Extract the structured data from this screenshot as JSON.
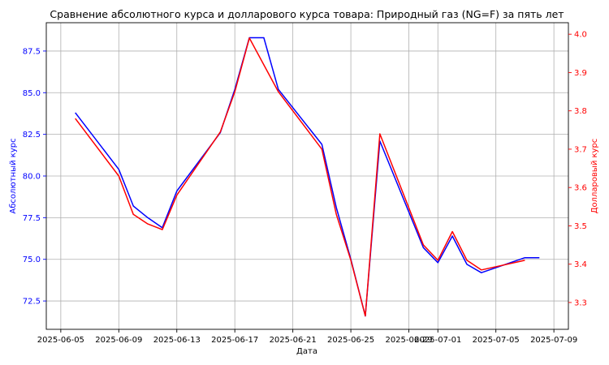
{
  "chart_data": {
    "type": "line",
    "title": "Сравнение абсолютного курса и долларового курса товара: Природный газ (NG=F) за пять лет",
    "xlabel": "Дата",
    "ylabel_left": "Абсолютный курс",
    "ylabel_right": "Долларовый курс",
    "grid": true,
    "colors": {
      "left": "#0000ff",
      "right": "#ff0000"
    },
    "x_ticks": [
      "2025-06-05",
      "2025-06-09",
      "2025-06-13",
      "2025-06-17",
      "2025-06-21",
      "2025-06-25",
      "2025-06-29",
      "2025-07-01",
      "2025-07-05",
      "2025-07-09"
    ],
    "xlim": [
      "2025-06-04",
      "2025-07-10"
    ],
    "ylim_left": [
      70.8,
      89.2
    ],
    "ylim_right": [
      3.23,
      4.03
    ],
    "y_ticks_left": [
      "72.5",
      "75.0",
      "77.5",
      "80.0",
      "82.5",
      "85.0",
      "87.5"
    ],
    "y_ticks_right": [
      "3.3",
      "3.4",
      "3.5",
      "3.6",
      "3.7",
      "3.8",
      "3.9",
      "4.0"
    ],
    "series": [
      {
        "axis": "left",
        "color": "#0000ff",
        "x": [
          "2025-06-06",
          "2025-06-09",
          "2025-06-10",
          "2025-06-11",
          "2025-06-12",
          "2025-06-13",
          "2025-06-16",
          "2025-06-17",
          "2025-06-18",
          "2025-06-19",
          "2025-06-20",
          "2025-06-23",
          "2025-06-24",
          "2025-06-25",
          "2025-06-26",
          "2025-06-27",
          "2025-06-30",
          "2025-07-01",
          "2025-07-02",
          "2025-07-03",
          "2025-07-04",
          "2025-07-07",
          "2025-07-08"
        ],
        "values": [
          83.8,
          80.4,
          78.2,
          77.5,
          76.9,
          79.1,
          82.6,
          85.2,
          88.3,
          88.3,
          85.2,
          81.9,
          78.1,
          75.0,
          71.6,
          82.1,
          75.7,
          74.8,
          76.4,
          74.7,
          74.2,
          75.1,
          75.1
        ]
      },
      {
        "axis": "right",
        "color": "#ff0000",
        "x": [
          "2025-06-06",
          "2025-06-09",
          "2025-06-10",
          "2025-06-11",
          "2025-06-12",
          "2025-06-13",
          "2025-06-16",
          "2025-06-17",
          "2025-06-18",
          "2025-06-20",
          "2025-06-23",
          "2025-06-24",
          "2025-06-25",
          "2025-06-26",
          "2025-06-27",
          "2025-06-30",
          "2025-07-01",
          "2025-07-02",
          "2025-07-03",
          "2025-07-04",
          "2025-07-07"
        ],
        "values": [
          3.78,
          3.63,
          3.53,
          3.505,
          3.49,
          3.58,
          3.745,
          3.85,
          3.99,
          3.85,
          3.7,
          3.53,
          3.41,
          3.265,
          3.74,
          3.45,
          3.41,
          3.485,
          3.41,
          3.385,
          3.41
        ]
      }
    ]
  }
}
